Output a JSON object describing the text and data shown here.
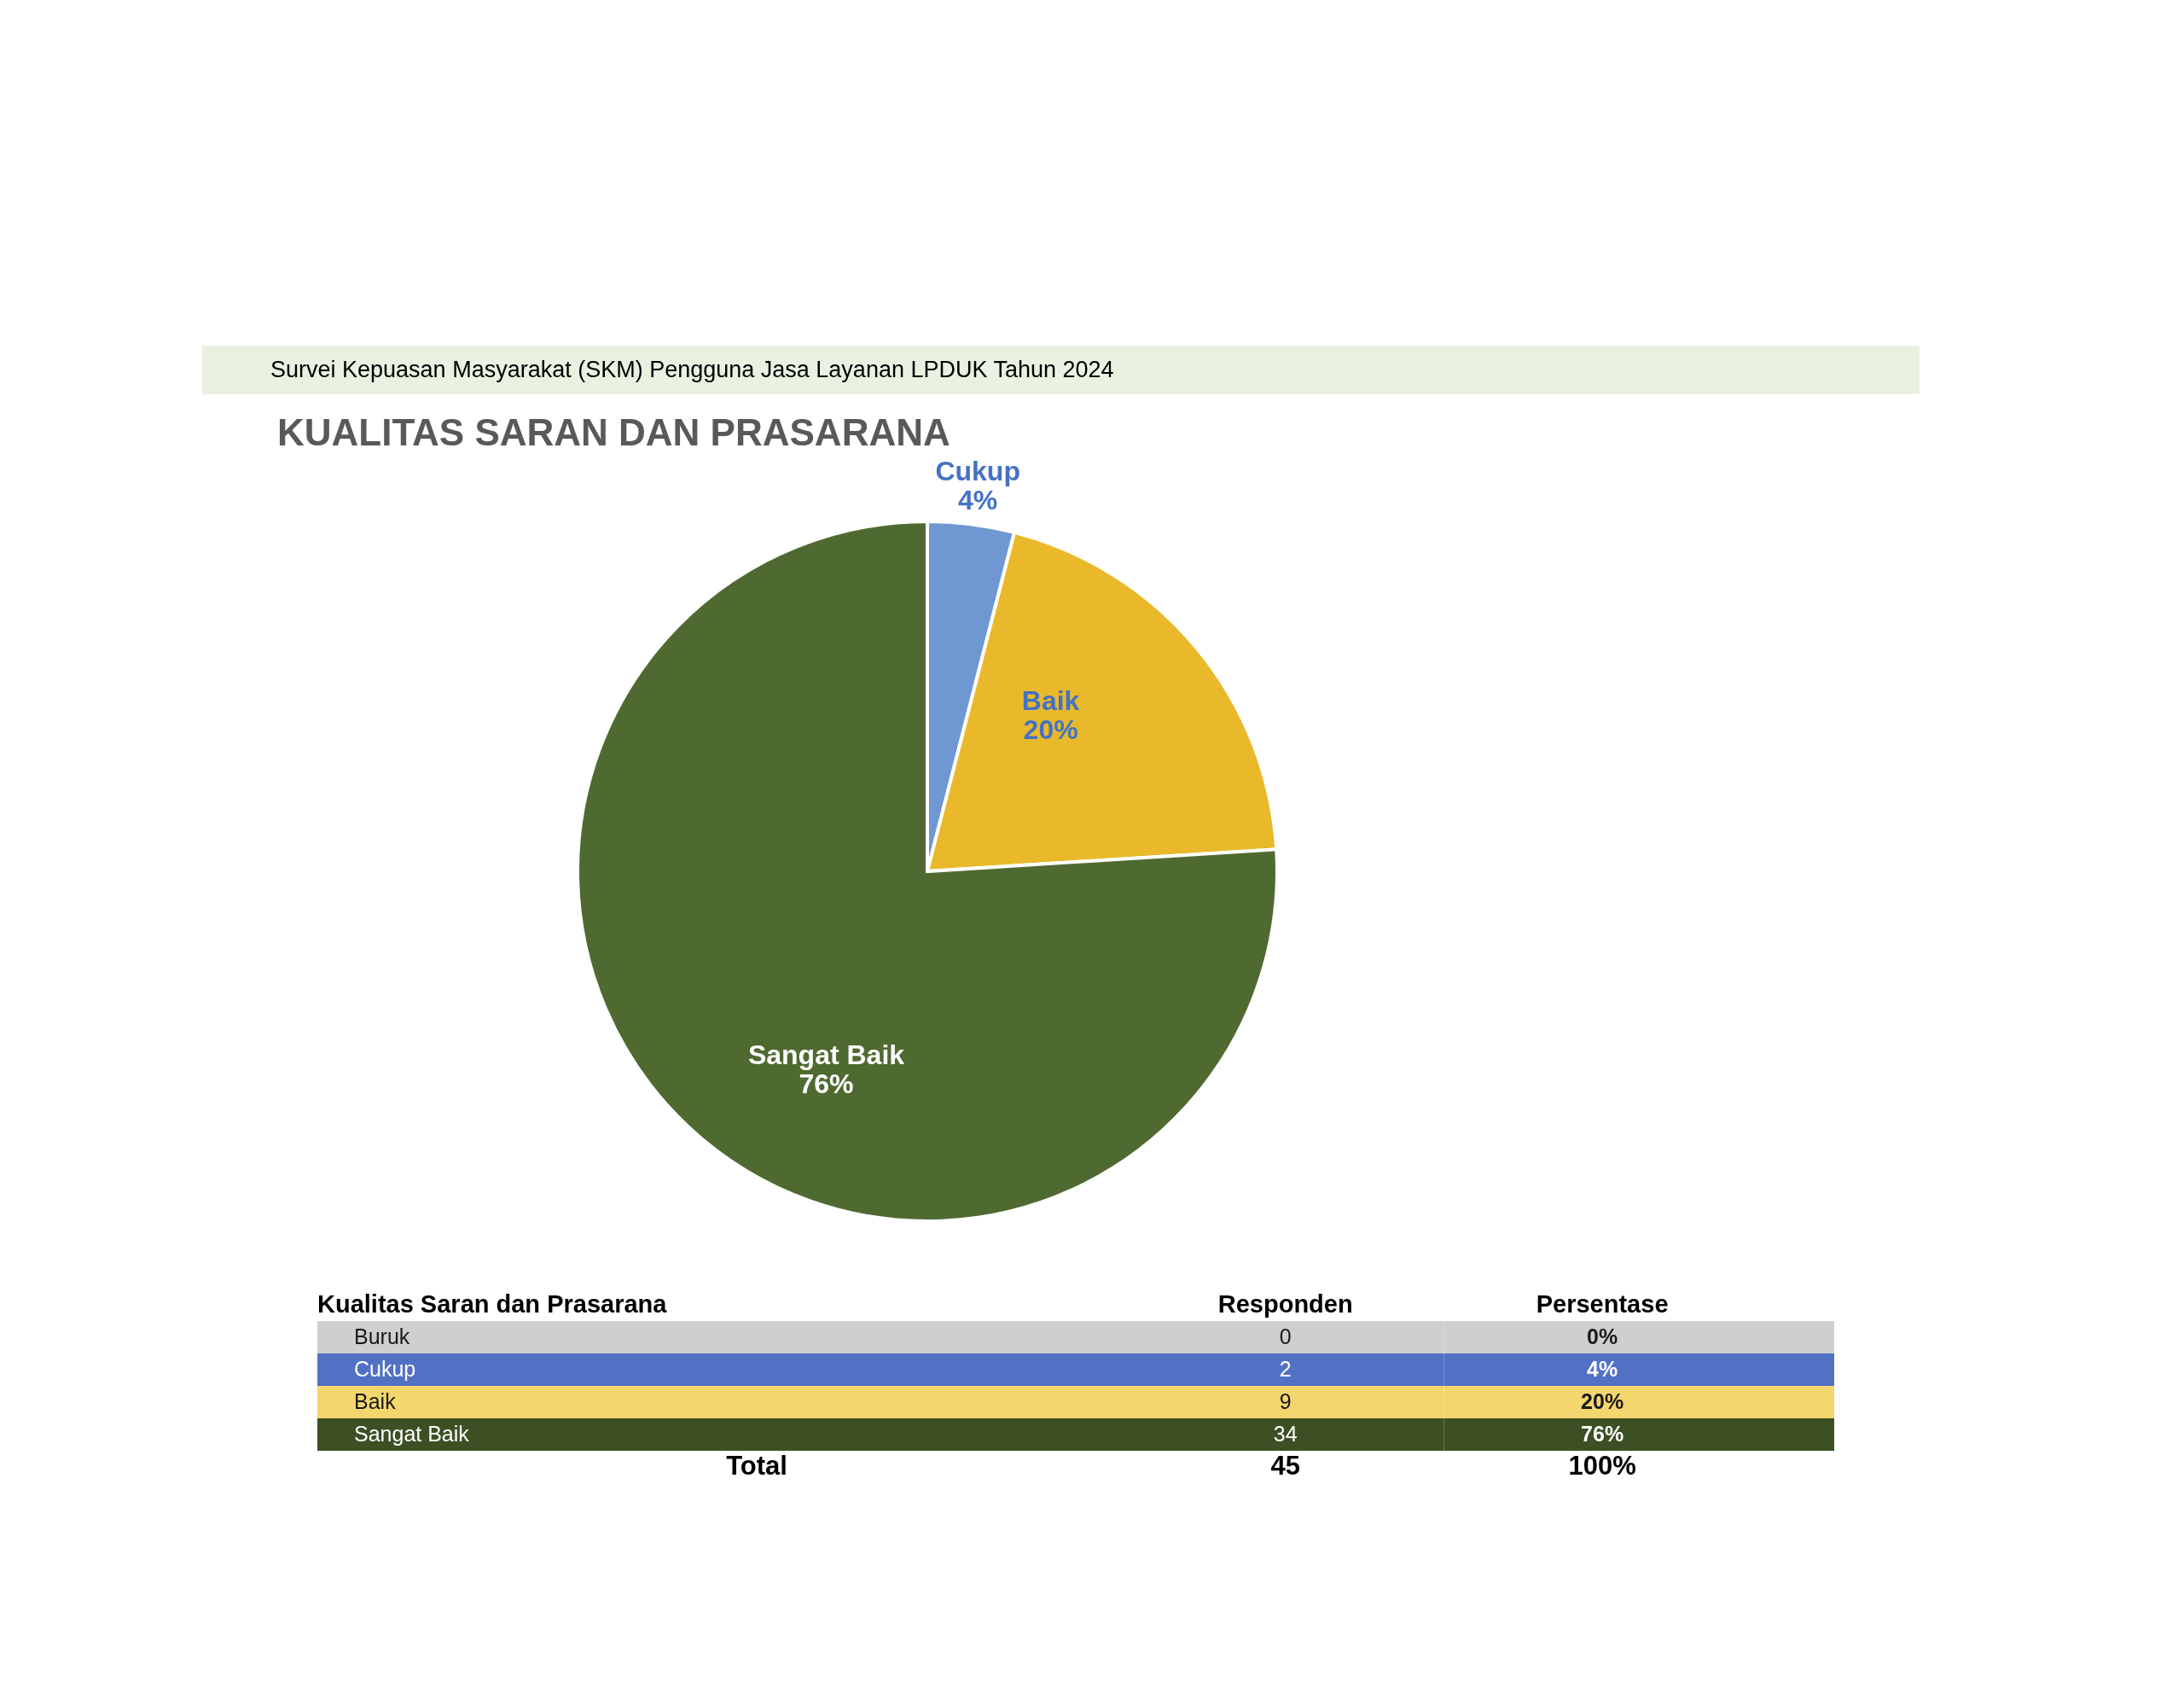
{
  "chart_data": [
    {
      "type": "pie",
      "title": "KUALITAS SARAN DAN PRASARANA",
      "subtitle": "Survei Kepuasan Masyarakat (SKM) Pengguna Jasa Layanan LPDUK Tahun 2024",
      "categories": [
        "Cukup",
        "Baik",
        "Sangat Baik"
      ],
      "values": [
        4,
        20,
        76
      ],
      "colors": [
        "#6f97d2",
        "#e9b92b",
        "#4f6a30"
      ],
      "value_labels": [
        "4%",
        "20%",
        "76%"
      ]
    },
    {
      "type": "other",
      "title": "Kualitas Saran dan Prasarana",
      "categories": [
        "Buruk",
        "Cukup",
        "Baik",
        "Sangat Baik"
      ],
      "colors": [
        "#d0cece",
        "#5171c5",
        "#f3d66e",
        "#3c5024"
      ],
      "series": [
        {
          "name": "Responden",
          "values": [
            0,
            2,
            9,
            34
          ],
          "colors": [
            "#d0cece",
            "#5171c5",
            "#f3d66e",
            "#3c5024"
          ]
        },
        {
          "name": "Persentase",
          "values": [
            0,
            4,
            20,
            76
          ],
          "colors": [
            "#d0cece",
            "#5171c5",
            "#f3d66e",
            "#3c5024"
          ],
          "value_labels": [
            "0%",
            "4%",
            "20%",
            "76%"
          ]
        }
      ],
      "data_labels": true,
      "totals": [
        "45",
        "100%"
      ],
      "annotations": [
        "Total"
      ]
    }
  ]
}
